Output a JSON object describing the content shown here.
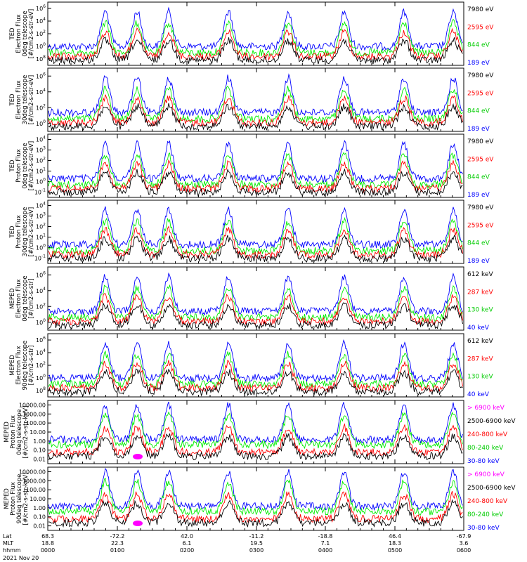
{
  "colors": {
    "c1": "#000000",
    "c2": "#ff0000",
    "c3": "#00ee00",
    "c4": "#0000ff",
    "c5": "#ff00ff"
  },
  "chart_data": [
    {
      "type": "line",
      "ylabel": [
        "TED",
        "Electron Flux",
        "0deg telescope",
        "[#/cm2-s-str-eV]"
      ],
      "yticks": [
        "10",
        "10",
        "10",
        "10",
        "10"
      ],
      "ypow": [
        "6",
        "4",
        "2",
        "0",
        "8"
      ],
      "ylog": true,
      "legend": [
        {
          "name": "7980 eV",
          "color": "#000000"
        },
        {
          "name": "2595 eV",
          "color": "#ff0000"
        },
        {
          "name": "844 eV",
          "color": "#00cc00"
        },
        {
          "name": "189 eV",
          "color": "#0000ff"
        }
      ]
    },
    {
      "type": "line",
      "ylabel": [
        "TED",
        "Electron Flux",
        "30deg telescope",
        "[#/cm2-s-str-eV]"
      ],
      "yticks": [
        "10",
        "10",
        "10",
        "10"
      ],
      "ypow": [
        "6",
        "4",
        "2",
        "0"
      ],
      "ylog": true,
      "legend": [
        {
          "name": "7980 eV",
          "color": "#000000"
        },
        {
          "name": "2595 eV",
          "color": "#ff0000"
        },
        {
          "name": "844 eV",
          "color": "#00cc00"
        },
        {
          "name": "189 eV",
          "color": "#0000ff"
        }
      ]
    },
    {
      "type": "line",
      "ylabel": [
        "TED",
        "Proton Flux",
        "0deg telescope",
        "[#/cm2-s-str-eV]"
      ],
      "yticks": [
        "10",
        "10",
        "10",
        "10",
        "10",
        "10"
      ],
      "ypow": [
        "4",
        "3",
        "2",
        "1",
        "0",
        "-1"
      ],
      "ylog": true,
      "legend": [
        {
          "name": "7980 eV",
          "color": "#000000"
        },
        {
          "name": "2595 eV",
          "color": "#ff0000"
        },
        {
          "name": "844 eV",
          "color": "#00cc00"
        },
        {
          "name": "189 eV",
          "color": "#0000ff"
        }
      ]
    },
    {
      "type": "line",
      "ylabel": [
        "TED",
        "Proton Flux",
        "30deg telescope",
        "[#/cm2-s-str-eV]"
      ],
      "yticks": [
        "10",
        "10",
        "10",
        "10",
        "10",
        "10"
      ],
      "ypow": [
        "4",
        "3",
        "2",
        "1",
        "0",
        "-1"
      ],
      "ylog": true,
      "legend": [
        {
          "name": "7980 eV",
          "color": "#000000"
        },
        {
          "name": "2595 eV",
          "color": "#ff0000"
        },
        {
          "name": "844 eV",
          "color": "#00cc00"
        },
        {
          "name": "189 eV",
          "color": "#0000ff"
        }
      ]
    },
    {
      "type": "line",
      "ylabel": [
        "MEPED",
        "Electron Flux",
        "0deg telescope",
        "[#/cm2-s-str]"
      ],
      "yticks": [
        "10",
        "10",
        "10",
        "10"
      ],
      "ypow": [
        "6",
        "4",
        "2",
        "0"
      ],
      "ylog": true,
      "legend": [
        {
          "name": "612 keV",
          "color": "#000000"
        },
        {
          "name": "287 keV",
          "color": "#ff0000"
        },
        {
          "name": "130 keV",
          "color": "#00cc00"
        },
        {
          "name": "40 keV",
          "color": "#0000ff"
        }
      ]
    },
    {
      "type": "line",
      "ylabel": [
        "MEPED",
        "Electron Flux",
        "90deg telescope",
        "[#/cm2-s-str]"
      ],
      "yticks": [
        "10",
        "10",
        "10",
        "10",
        "10"
      ],
      "ypow": [
        "6",
        "4",
        "2",
        "0",
        "8"
      ],
      "ylog": true,
      "legend": [
        {
          "name": "612 keV",
          "color": "#000000"
        },
        {
          "name": "287 keV",
          "color": "#ff0000"
        },
        {
          "name": "130 keV",
          "color": "#00cc00"
        },
        {
          "name": "40 keV",
          "color": "#0000ff"
        }
      ]
    },
    {
      "type": "line",
      "ylabel": [
        "MEPED",
        "Proton Flux",
        "0deg telescope",
        "[#/cm2-s-str-keV]"
      ],
      "yticks": [
        "10000.00",
        "1000.00",
        "100.00",
        "10.00",
        "1.00",
        "0.10",
        "0.01"
      ],
      "ylog": true,
      "legend": [
        {
          "name": "> 6900 keV",
          "color": "#ff00ff"
        },
        {
          "name": "2500-6900 keV",
          "color": "#000000"
        },
        {
          "name": "240-800 keV",
          "color": "#ff0000"
        },
        {
          "name": "80-240 keV",
          "color": "#00cc00"
        },
        {
          "name": "30-80 keV",
          "color": "#0000ff"
        }
      ]
    },
    {
      "type": "line",
      "ylabel": [
        "MEPED",
        "Proton Flux",
        "90deg telescope",
        "[#/cm2-s-str-keV]"
      ],
      "yticks": [
        "10000.00",
        "1000.00",
        "100.00",
        "10.00",
        "1.00",
        "0.10",
        "0.01"
      ],
      "ylog": true,
      "legend": [
        {
          "name": "> 6900 keV",
          "color": "#ff00ff"
        },
        {
          "name": "2500-6900 keV",
          "color": "#000000"
        },
        {
          "name": "240-800 keV",
          "color": "#ff0000"
        },
        {
          "name": "80-240 keV",
          "color": "#00cc00"
        },
        {
          "name": "30-80 keV",
          "color": "#0000ff"
        }
      ]
    }
  ],
  "xaxis": {
    "row_labels": [
      "Lat",
      "MLT",
      "hhmm"
    ],
    "lat": [
      "68.3",
      "-72.2",
      "42.0",
      "-11.2",
      "-18.8",
      "46.4",
      "-67.9"
    ],
    "mlt": [
      "18.8",
      "22.3",
      "6.1",
      "19.5",
      "7.1",
      "18.3",
      "3.6"
    ],
    "hhmm": [
      "0000",
      "0100",
      "0200",
      "0300",
      "0400",
      "0500",
      "0600"
    ],
    "date": "2021 Nov 20"
  }
}
